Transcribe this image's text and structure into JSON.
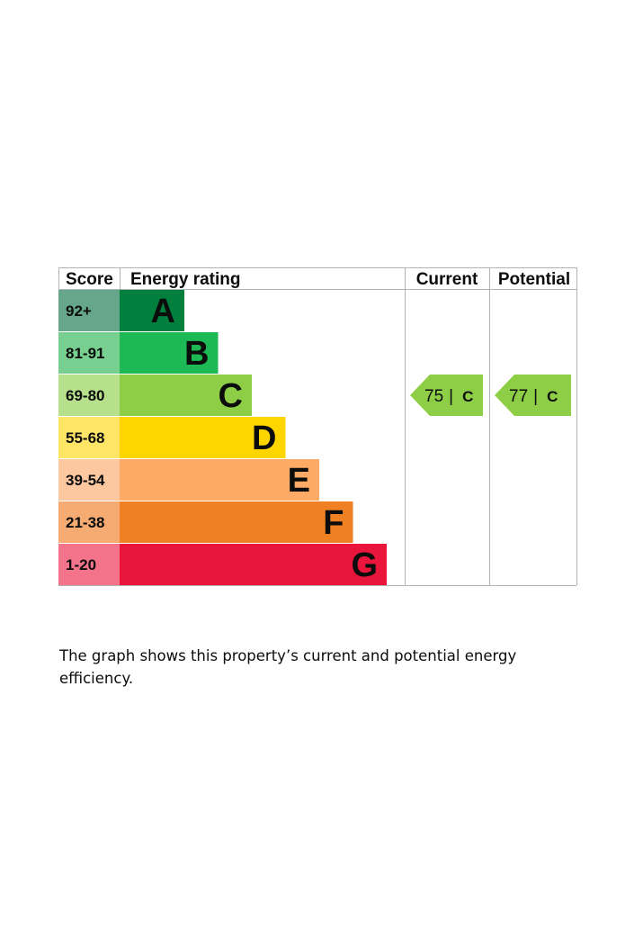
{
  "chart_data": {
    "type": "table",
    "headers": {
      "score": "Score",
      "rating": "Energy rating",
      "current": "Current",
      "potential": "Potential"
    },
    "bands": [
      {
        "score": "92+",
        "letter": "A",
        "color": "#007f3d",
        "score_bg": "#66a68a"
      },
      {
        "score": "81-91",
        "letter": "B",
        "color": "#1db954",
        "score_bg": "#77d08f"
      },
      {
        "score": "69-80",
        "letter": "C",
        "color": "#8dce46",
        "score_bg": "#b6e08b"
      },
      {
        "score": "55-68",
        "letter": "D",
        "color": "#ffd500",
        "score_bg": "#ffe566"
      },
      {
        "score": "39-54",
        "letter": "E",
        "color": "#fcaa65",
        "score_bg": "#fdc8a0"
      },
      {
        "score": "21-38",
        "letter": "F",
        "color": "#ef8023",
        "score_bg": "#f5ab72"
      },
      {
        "score": "1-20",
        "letter": "G",
        "color": "#e9153b",
        "score_bg": "#f2738a"
      }
    ],
    "current": {
      "value": 75,
      "sep": "|",
      "letter": "C",
      "color": "#8dce46"
    },
    "potential": {
      "value": 77,
      "sep": "|",
      "letter": "C",
      "color": "#8dce46"
    }
  },
  "description": "The graph shows this property’s current and potential energy efficiency."
}
